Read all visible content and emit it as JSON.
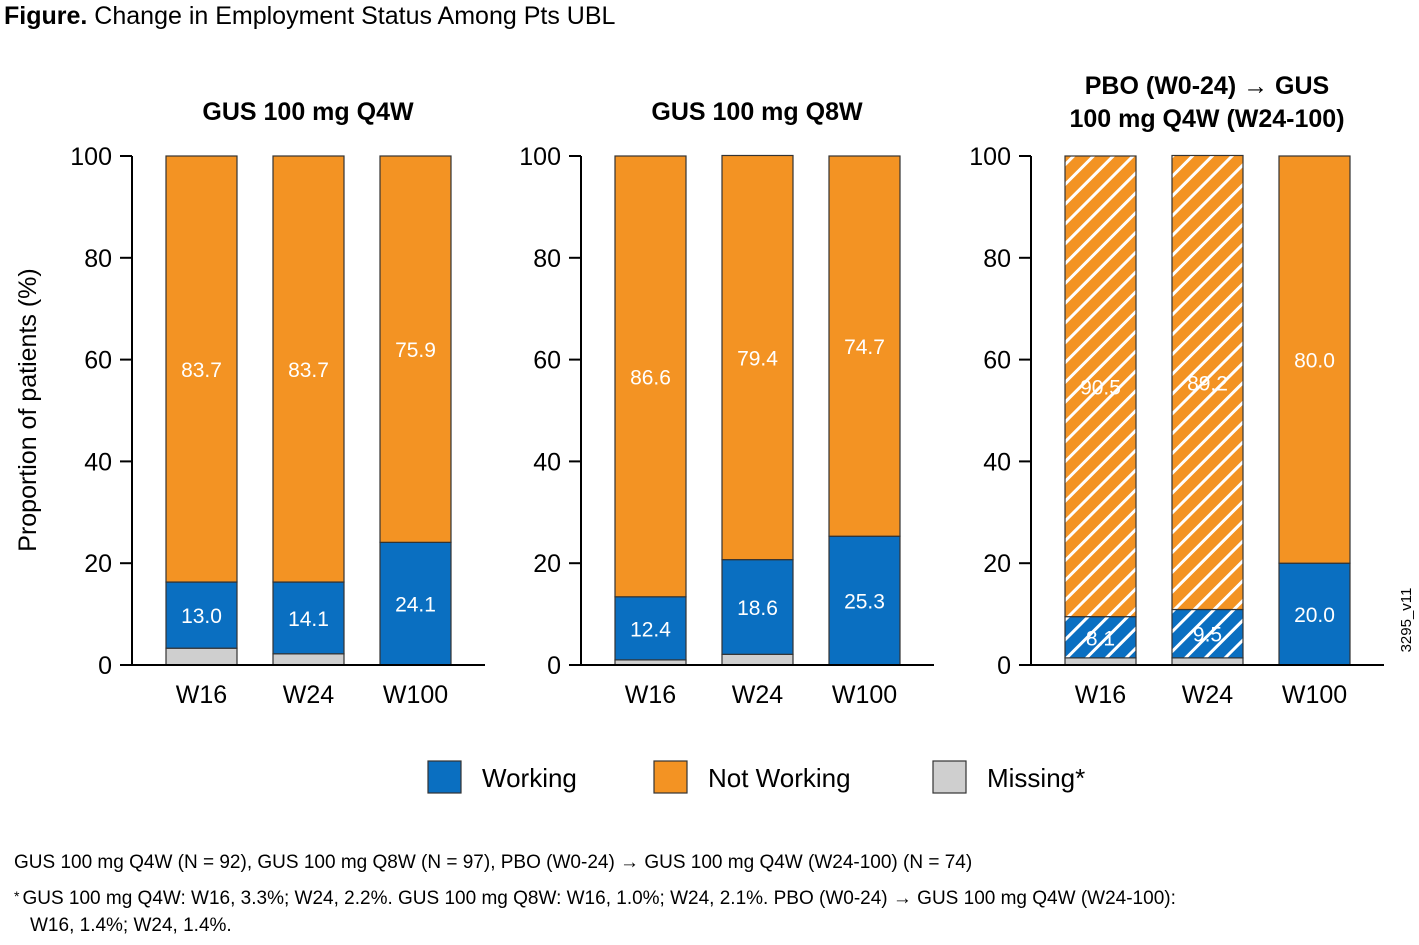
{
  "figure": {
    "title_bold": "Figure.",
    "title_rest": "Change in Employment Status Among Pts UBL"
  },
  "version_tag": "3295_v11",
  "colors": {
    "working": "#0a6fc1",
    "not_working": "#f39323",
    "missing": "#cfcfcf",
    "outline": "#333333"
  },
  "chart_data": {
    "type": "bar",
    "stacked": true,
    "ylabel": "Proportion of patients (%)",
    "ylim": [
      0,
      100
    ],
    "yticks": [
      0,
      20,
      40,
      60,
      80,
      100
    ],
    "legend": {
      "position": "bottom-center",
      "entries": [
        {
          "key": "working",
          "label": "Working"
        },
        {
          "key": "not_working",
          "label": "Not Working"
        },
        {
          "key": "missing",
          "label": "Missing*"
        }
      ]
    },
    "panels": [
      {
        "title_lines": [
          "GUS 100 mg Q4W"
        ],
        "categories": [
          "W16",
          "W24",
          "W100"
        ],
        "series": [
          {
            "name": "Missing*",
            "key": "missing",
            "values": [
              3.3,
              2.2,
              0
            ]
          },
          {
            "name": "Working",
            "key": "working",
            "values": [
              13.0,
              14.1,
              24.1
            ]
          },
          {
            "name": "Not Working",
            "key": "not_working",
            "values": [
              83.7,
              83.7,
              75.9
            ]
          }
        ],
        "labels": {
          "working": [
            "13.0",
            "14.1",
            "24.1"
          ],
          "not_working": [
            "83.7",
            "83.7",
            "75.9"
          ]
        },
        "hatched": [
          false,
          false,
          false
        ]
      },
      {
        "title_lines": [
          "GUS 100 mg Q8W"
        ],
        "categories": [
          "W16",
          "W24",
          "W100"
        ],
        "series": [
          {
            "name": "Missing*",
            "key": "missing",
            "values": [
              1.0,
              2.1,
              0
            ]
          },
          {
            "name": "Working",
            "key": "working",
            "values": [
              12.4,
              18.6,
              25.3
            ]
          },
          {
            "name": "Not Working",
            "key": "not_working",
            "values": [
              86.6,
              79.4,
              74.7
            ]
          }
        ],
        "labels": {
          "working": [
            "12.4",
            "18.6",
            "25.3"
          ],
          "not_working": [
            "86.6",
            "79.4",
            "74.7"
          ]
        },
        "hatched": [
          false,
          false,
          false
        ]
      },
      {
        "title_lines": [
          "PBO (W0-24) → GUS",
          "100 mg Q4W (W24-100)"
        ],
        "categories": [
          "W16",
          "W24",
          "W100"
        ],
        "series": [
          {
            "name": "Missing*",
            "key": "missing",
            "values": [
              1.4,
              1.4,
              0
            ]
          },
          {
            "name": "Working",
            "key": "working",
            "values": [
              8.1,
              9.5,
              20.0
            ]
          },
          {
            "name": "Not Working",
            "key": "not_working",
            "values": [
              90.5,
              89.2,
              80.0
            ]
          }
        ],
        "labels": {
          "working": [
            "8.1",
            "9.5",
            "20.0"
          ],
          "not_working": [
            "90.5",
            "89.2",
            "80.0"
          ]
        },
        "hatched": [
          true,
          true,
          false
        ]
      }
    ]
  },
  "footnotes": {
    "n_line": "GUS 100 mg Q4W (N = 92), GUS 100 mg Q8W (N = 97), PBO (W0-24) → GUS 100 mg Q4W (W24-100) (N = 74)",
    "missing_marker": "*",
    "missing_line1": "GUS 100 mg Q4W: W16, 3.3%; W24, 2.2%. GUS 100 mg Q8W: W16, 1.0%; W24, 2.1%. PBO (W0-24) → GUS 100 mg Q4W (W24-100):",
    "missing_line2": "W16, 1.4%; W24, 1.4%."
  }
}
